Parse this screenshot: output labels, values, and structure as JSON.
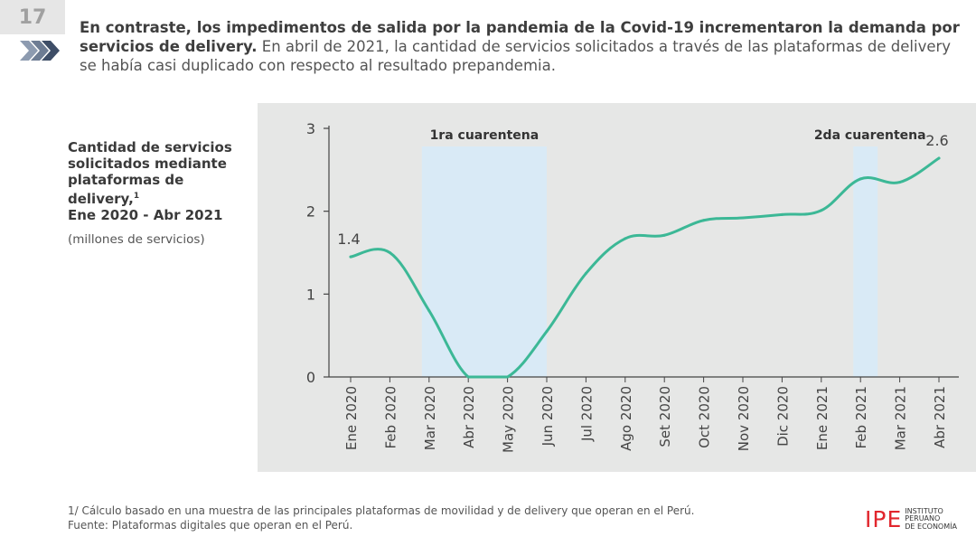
{
  "slide_number": "17",
  "headline": {
    "bold": "En contraste, los impedimentos de salida por la pandemia de la Covid-19 incrementaron la demanda por servicios de delivery.",
    "regular": " En abril de 2021, la cantidad de servicios solicitados a través de las plataformas de delivery se había casi duplicado con respecto al resultado prepandemia."
  },
  "chart_title": {
    "main": "Cantidad de servicios solicitados mediante plataformas de delivery,",
    "footnote_ref": "1",
    "period": "Ene 2020 - Abr 2021",
    "units": "(millones de servicios)"
  },
  "footnotes": {
    "note1": "1/ Cálculo basado en una muestra de las principales plataformas de movilidad y de delivery que operan en el Perú.",
    "source": "Fuente: Plataformas digitales que operan en el Perú."
  },
  "logo": {
    "mark": "IPE",
    "line1": "Instituto",
    "line2": "Peruano",
    "line3": "de Economía"
  },
  "colors": {
    "line": "#3cb896",
    "shade": "#d9eaf6",
    "panel": "#e6e7e6",
    "brand_red": "#e1262d"
  },
  "chart_data": {
    "type": "line",
    "categories": [
      "Ene 2020",
      "Feb 2020",
      "Mar 2020",
      "Abr 2020",
      "May 2020",
      "Jun 2020",
      "Jul 2020",
      "Ago 2020",
      "Set 2020",
      "Oct 2020",
      "Nov 2020",
      "Dic 2020",
      "Ene 2021",
      "Feb 2021",
      "Mar 2021",
      "Abr 2021"
    ],
    "series": [
      {
        "values": [
          1.45,
          1.5,
          0.8,
          0.0,
          0.0,
          0.55,
          1.25,
          1.67,
          1.71,
          1.89,
          1.92,
          1.96,
          2.01,
          2.39,
          2.35,
          2.64
        ]
      }
    ],
    "ylim": [
      0,
      3
    ],
    "yticks": [
      0,
      1,
      2,
      3
    ],
    "grid": false,
    "data_labels": [
      {
        "category": "Ene 2020",
        "text": "1.4"
      },
      {
        "category": "Abr 2021",
        "text": "2.6"
      }
    ],
    "shaded_periods": [
      {
        "label": "1ra cuarentena",
        "from": "Mar 2020",
        "to": "Jun 2020"
      },
      {
        "label": "2da cuarentena",
        "from": "Feb 2021",
        "to": "Feb 2021"
      }
    ]
  }
}
